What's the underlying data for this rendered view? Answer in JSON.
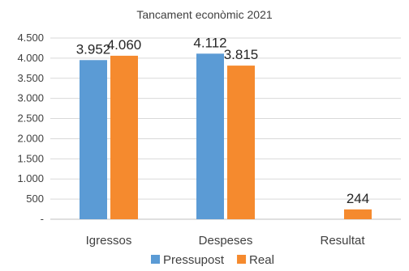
{
  "chart_data": {
    "type": "bar",
    "title": "Tancament econòmic 2021",
    "categories": [
      "Igressos",
      "Despeses",
      "Resultat"
    ],
    "series": [
      {
        "name": "Pressupost",
        "color": "#5B9BD5",
        "values": [
          3952,
          4112,
          null
        ],
        "labels": [
          "3.952",
          "4.112",
          ""
        ]
      },
      {
        "name": "Real",
        "color": "#F58A2E",
        "values": [
          4060,
          3815,
          244
        ],
        "labels": [
          "4.060",
          "3.815",
          "244"
        ]
      }
    ],
    "yticks": [
      0,
      500,
      1000,
      1500,
      2000,
      2500,
      3000,
      3500,
      4000,
      4500
    ],
    "ytick_labels": [
      "-",
      "500",
      "1.000",
      "1.500",
      "2.000",
      "2.500",
      "3.000",
      "3.500",
      "4.000",
      "4.500"
    ],
    "ylim": [
      0,
      4500
    ],
    "grid": true,
    "legend": "bottom-center"
  }
}
